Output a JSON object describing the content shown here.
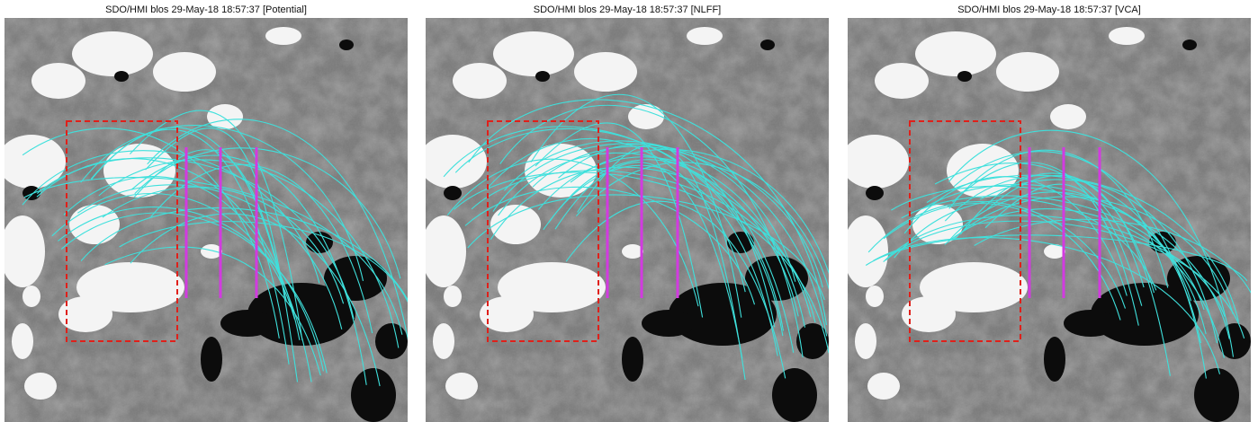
{
  "panels": [
    {
      "title": "SDO/HMI blos 29-May-18 18:57:37 [Potential]"
    },
    {
      "title": "SDO/HMI blos 29-May-18 18:57:37 [NLFF]"
    },
    {
      "title": "SDO/HMI blos 29-May-18 18:57:37 [VCA]"
    }
  ]
}
